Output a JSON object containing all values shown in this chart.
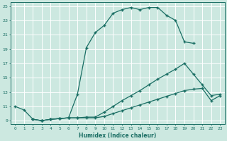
{
  "xlabel": "Humidex (Indice chaleur)",
  "xlim": [
    -0.5,
    23.5
  ],
  "ylim": [
    8.5,
    25.5
  ],
  "xticks": [
    0,
    1,
    2,
    3,
    4,
    5,
    6,
    7,
    8,
    9,
    10,
    11,
    12,
    13,
    14,
    15,
    16,
    17,
    18,
    19,
    20,
    21,
    22,
    23
  ],
  "yticks": [
    9,
    11,
    13,
    15,
    17,
    19,
    21,
    23,
    25
  ],
  "bg_color": "#cce8e0",
  "line_color": "#1a6e64",
  "grid_color": "#ffffff",
  "line1_x": [
    0,
    1,
    2,
    3,
    4,
    5,
    6,
    7,
    8,
    9,
    10,
    11,
    12,
    13,
    14,
    15,
    16,
    17,
    18,
    19,
    20
  ],
  "line1_y": [
    11,
    10.5,
    9.2,
    9.0,
    9.2,
    9.3,
    9.4,
    12.7,
    19.2,
    21.3,
    22.3,
    24.0,
    24.5,
    24.8,
    24.5,
    24.8,
    24.8,
    23.7,
    23.0,
    20.0,
    19.8
  ],
  "line2_x": [
    2,
    3,
    4,
    5,
    6,
    7,
    8,
    9,
    10,
    11,
    12,
    13,
    14,
    15,
    16,
    17,
    18,
    19,
    20,
    21,
    22,
    23
  ],
  "line2_y": [
    9.2,
    9.0,
    9.2,
    9.3,
    9.4,
    9.4,
    9.5,
    9.5,
    10.2,
    11.0,
    11.8,
    12.5,
    13.2,
    14.0,
    14.8,
    15.5,
    16.2,
    17.0,
    15.5,
    14.0,
    12.5,
    12.7
  ],
  "line3_x": [
    2,
    3,
    4,
    5,
    6,
    7,
    8,
    9,
    10,
    11,
    12,
    13,
    14,
    15,
    16,
    17,
    18,
    19,
    20,
    21,
    22,
    23
  ],
  "line3_y": [
    9.2,
    9.0,
    9.2,
    9.3,
    9.4,
    9.4,
    9.4,
    9.4,
    9.6,
    10.0,
    10.4,
    10.8,
    11.2,
    11.6,
    12.0,
    12.4,
    12.8,
    13.2,
    13.4,
    13.5,
    11.8,
    12.5
  ]
}
